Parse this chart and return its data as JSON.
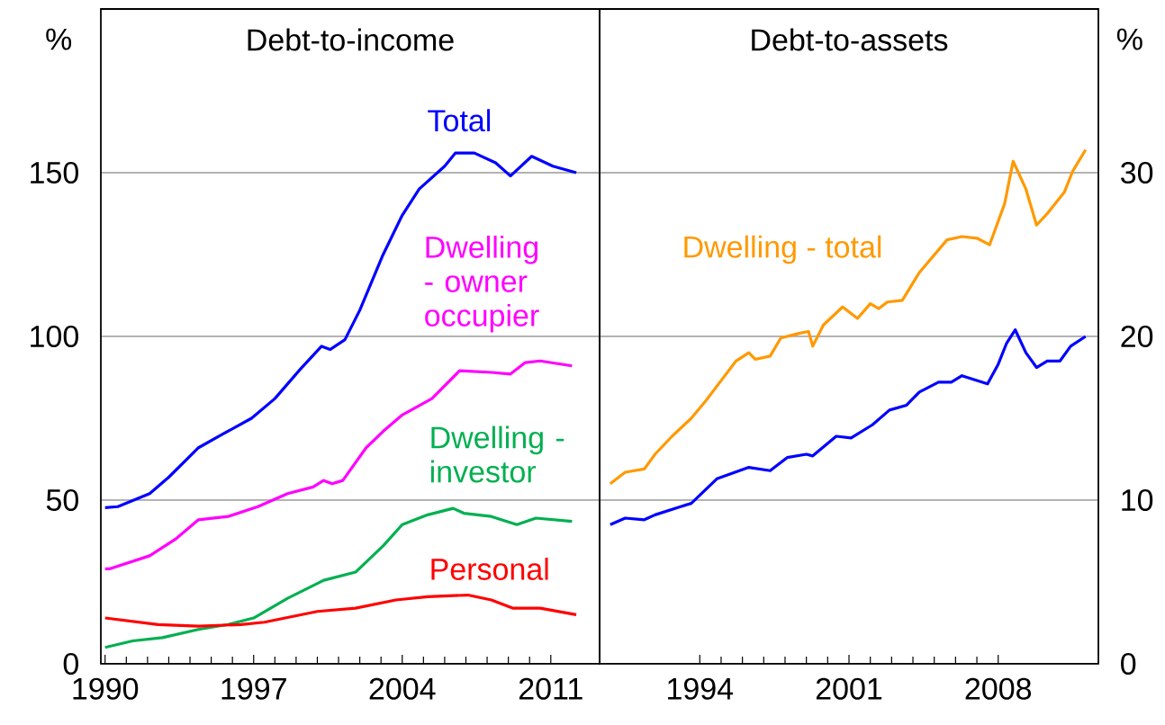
{
  "chart_data": [
    {
      "type": "line",
      "title": "Debt-to-income",
      "ylabel": "%",
      "xlim": [
        1989.8,
        2013.3
      ],
      "ylim": [
        0,
        200
      ],
      "xticks": [
        1990,
        1997,
        2004,
        2011
      ],
      "yticks": [
        0,
        50,
        100,
        150
      ],
      "grid": "y",
      "marker": "none",
      "line_style": "solid",
      "series": [
        {
          "name": "Total",
          "color": "#0000ff",
          "x": [
            1990,
            1990.6,
            1992.1,
            1993,
            1994.4,
            1995.5,
            1996.9,
            1998,
            1999.2,
            2000.2,
            2000.6,
            2001.3,
            2002,
            2003.1,
            2004,
            2004.8,
            2006,
            2006.5,
            2007.4,
            2008.4,
            2009.1,
            2010.1,
            2011.1,
            2012.2
          ],
          "values": [
            47.7,
            48,
            52,
            57,
            66,
            70,
            75,
            81,
            90,
            97,
            96,
            99,
            108,
            125,
            137,
            145,
            152,
            156,
            156,
            153,
            149,
            155,
            152,
            150
          ]
        },
        {
          "name": "Dwelling - owner occupier",
          "color": "#ff00ff",
          "x": [
            1990,
            1990.2,
            1992.1,
            1993.3,
            1994.4,
            1995.8,
            1997.2,
            1998.6,
            1999.8,
            2000.3,
            2000.7,
            2001.2,
            2002.3,
            2003.1,
            2004,
            2005.4,
            2006.7,
            2008.2,
            2009.1,
            2009.8,
            2010.5,
            2012
          ],
          "values": [
            29,
            29,
            33,
            38,
            44,
            45,
            48,
            52,
            54,
            56,
            55,
            56,
            66,
            71,
            76,
            81,
            89.5,
            89,
            88.5,
            92,
            92.5,
            91
          ]
        },
        {
          "name": "Dwelling - investor",
          "color": "#00b050",
          "x": [
            1990,
            1991.3,
            1992.7,
            1994.4,
            1995.8,
            1997,
            1998.6,
            2000.3,
            2001.8,
            2003.1,
            2004,
            2005.2,
            2006.4,
            2006.9,
            2008.2,
            2009.4,
            2010.3,
            2012
          ],
          "values": [
            5,
            7,
            8,
            10.5,
            12,
            14,
            20,
            25.5,
            28,
            36,
            42.5,
            45.5,
            47.5,
            46,
            45,
            42.5,
            44.5,
            43.5
          ]
        },
        {
          "name": "Personal",
          "color": "#ff0000",
          "x": [
            1990,
            1992.5,
            1994.4,
            1996.4,
            1997.5,
            2000,
            2001.8,
            2003.7,
            2005.2,
            2007.1,
            2008.2,
            2009.2,
            2010.5,
            2012.2
          ],
          "values": [
            14,
            12,
            11.5,
            12,
            12.7,
            16,
            17,
            19.5,
            20.5,
            21,
            19.5,
            17,
            17,
            15
          ]
        }
      ]
    },
    {
      "type": "line",
      "title": "Debt-to-assets",
      "ylabel": "%",
      "xlim": [
        1989.3,
        2012.7
      ],
      "ylim": [
        0,
        40
      ],
      "xticks": [
        1994,
        2001,
        2008
      ],
      "yticks": [
        0,
        10,
        20,
        30
      ],
      "grid": "y",
      "marker": "none",
      "line_style": "solid",
      "series": [
        {
          "name": "Dwelling - total",
          "color": "#ff9900",
          "x": [
            1989.8,
            1990.5,
            1991.4,
            1991.9,
            1992.7,
            1993.6,
            1994.3,
            1995,
            1995.7,
            1996.3,
            1996.6,
            1997.3,
            1997.8,
            1998.7,
            1999.1,
            1999.3,
            1999.8,
            2000.7,
            2001.4,
            2002,
            2002.4,
            2002.8,
            2003.5,
            2004.3,
            2005.6,
            2006.3,
            2007,
            2007.6,
            2008.3,
            2008.7,
            2009.3,
            2009.8,
            2010.3,
            2011.1,
            2011.5,
            2012.1
          ],
          "values": [
            11,
            11.7,
            11.9,
            12.8,
            13.9,
            15,
            16.1,
            17.3,
            18.5,
            19,
            18.6,
            18.8,
            19.9,
            20.2,
            20.3,
            19.4,
            20.7,
            21.8,
            21.1,
            22,
            21.7,
            22.1,
            22.2,
            23.9,
            25.9,
            26.1,
            26,
            25.6,
            28.1,
            30.7,
            29,
            26.8,
            27.5,
            28.8,
            30.1,
            31.4
          ]
        },
        {
          "color": "#0000ff",
          "x": [
            1989.8,
            1990.5,
            1991.4,
            1991.9,
            1993.1,
            1993.6,
            1994.8,
            1996.3,
            1997.3,
            1998.1,
            1999,
            1999.3,
            2000.4,
            2001.1,
            2002.1,
            2002.9,
            2003.7,
            2004.3,
            2005.2,
            2005.8,
            2006.3,
            2007.5,
            2008,
            2008.4,
            2008.8,
            2009.3,
            2009.8,
            2010.3,
            2010.9,
            2011.4,
            2012.1
          ],
          "values": [
            8.5,
            8.9,
            8.8,
            9.1,
            9.6,
            9.8,
            11.3,
            12,
            11.8,
            12.6,
            12.8,
            12.7,
            13.9,
            13.8,
            14.6,
            15.5,
            15.8,
            16.6,
            17.2,
            17.2,
            17.6,
            17.1,
            18.3,
            19.6,
            20.4,
            19,
            18.1,
            18.5,
            18.5,
            19.4,
            20
          ]
        }
      ]
    }
  ]
}
